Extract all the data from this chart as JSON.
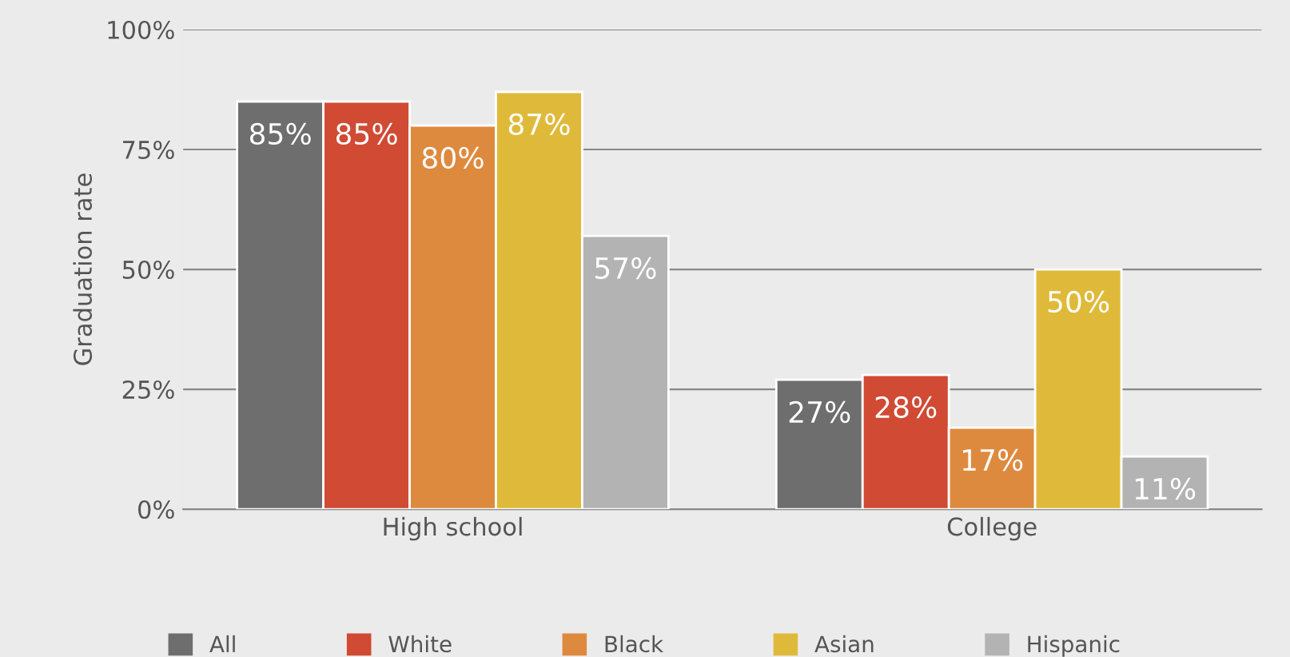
{
  "chart_data": {
    "type": "bar",
    "ylabel": "Graduation rate",
    "categories": [
      "High school",
      "College"
    ],
    "series": [
      {
        "name": "All",
        "color": "#6e6e6e",
        "values": [
          85,
          27
        ],
        "value_labels": [
          "85%",
          "27%"
        ]
      },
      {
        "name": "White",
        "color": "#d04a34",
        "values": [
          85,
          28
        ],
        "value_labels": [
          "85%",
          "28%"
        ]
      },
      {
        "name": "Black",
        "color": "#de8a3e",
        "values": [
          80,
          17
        ],
        "value_labels": [
          "80%",
          "17%"
        ]
      },
      {
        "name": "Asian",
        "color": "#dfba3a",
        "values": [
          87,
          50
        ],
        "value_labels": [
          "87%",
          "50%"
        ]
      },
      {
        "name": "Hispanic",
        "color": "#b3b3b3",
        "values": [
          57,
          11
        ],
        "value_labels": [
          "57%",
          "11%"
        ]
      }
    ],
    "ylim": [
      0,
      100
    ],
    "yticks": [
      {
        "value": 0,
        "label": "0%"
      },
      {
        "value": 25,
        "label": "25%"
      },
      {
        "value": 50,
        "label": "50%"
      },
      {
        "value": 75,
        "label": "75%"
      },
      {
        "value": 100,
        "label": "100%"
      }
    ],
    "grid": "y",
    "legend": "bottom"
  }
}
